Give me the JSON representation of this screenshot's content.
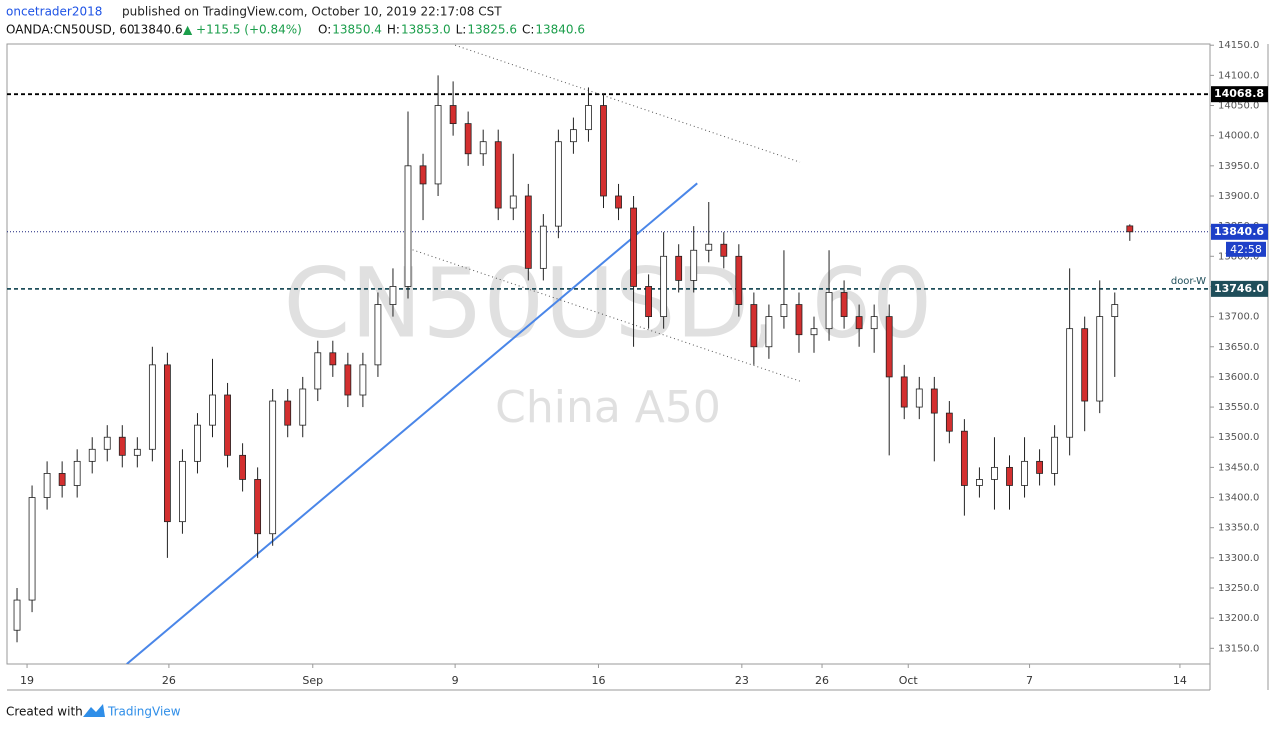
{
  "header": {
    "author": "oncetrader2018",
    "published": "published on TradingView.com, October 10, 2019 22:17:08 CST",
    "symbol": "OANDA:CN50USD, 60",
    "last": "13840.6",
    "change": "▲ +115.5 (+0.84%)",
    "ohlc": [
      [
        "O:",
        "13850.4"
      ],
      [
        "H:",
        "13853.0"
      ],
      [
        "L:",
        "13825.6"
      ],
      [
        "C:",
        "13840.6"
      ]
    ]
  },
  "chart_data": {
    "type": "candlestick",
    "watermark": [
      "CN50USD, 60",
      "China A50"
    ],
    "up_color": "#ffffff",
    "down_color": "#d32f2f",
    "wick_color": "#222222",
    "x": [
      2,
      5,
      8,
      11,
      14,
      17,
      20,
      23,
      26,
      29,
      32,
      35,
      38,
      41,
      44,
      47,
      50,
      53,
      56,
      59,
      62,
      65,
      68,
      71,
      74,
      77,
      80,
      83,
      86,
      89,
      92,
      95,
      98,
      101,
      104,
      107,
      110,
      113,
      116,
      119,
      122,
      125,
      128,
      131,
      134,
      137,
      140,
      143,
      146,
      149,
      152,
      155,
      158,
      161,
      164,
      167,
      170,
      173,
      176,
      179,
      182,
      185,
      188,
      191,
      194,
      197,
      200,
      203,
      206,
      209,
      212,
      215,
      218,
      221,
      224
    ],
    "open": [
      13180,
      13230,
      13400,
      13440,
      13420,
      13460,
      13480,
      13500,
      13470,
      13480,
      13620,
      13360,
      13460,
      13520,
      13570,
      13470,
      13430,
      13340,
      13560,
      13520,
      13580,
      13640,
      13620,
      13570,
      13620,
      13720,
      13750,
      13950,
      13920,
      14050,
      14020,
      13970,
      13990,
      13880,
      13900,
      13780,
      13850,
      13990,
      14010,
      14050,
      13900,
      13880,
      13750,
      13700,
      13800,
      13760,
      13810,
      13820,
      13800,
      13720,
      13650,
      13700,
      13720,
      13670,
      13680,
      13740,
      13700,
      13680,
      13700,
      13600,
      13550,
      13580,
      13540,
      13510,
      13420,
      13430,
      13450,
      13420,
      13460,
      13440,
      13500,
      13680,
      13560,
      13700,
      13850.4
    ],
    "high": [
      13250,
      13420,
      13460,
      13460,
      13480,
      13500,
      13520,
      13520,
      13500,
      13650,
      13640,
      13480,
      13540,
      13630,
      13590,
      13490,
      13450,
      13580,
      13580,
      13600,
      13660,
      13660,
      13640,
      13640,
      13740,
      13780,
      14040,
      13970,
      14100,
      14090,
      14040,
      14010,
      14010,
      13970,
      13920,
      13870,
      14010,
      14030,
      14080,
      14070,
      13920,
      13900,
      13770,
      13840,
      13820,
      13850,
      13890,
      13840,
      13820,
      13740,
      13720,
      13810,
      13740,
      13700,
      13810,
      13760,
      13720,
      13720,
      13720,
      13620,
      13600,
      13600,
      13560,
      13530,
      13450,
      13500,
      13470,
      13500,
      13480,
      13520,
      13780,
      13700,
      13760,
      13740,
      13853
    ],
    "low": [
      13160,
      13210,
      13380,
      13400,
      13400,
      13440,
      13460,
      13450,
      13450,
      13460,
      13300,
      13340,
      13440,
      13500,
      13450,
      13410,
      13300,
      13320,
      13500,
      13500,
      13560,
      13600,
      13550,
      13550,
      13600,
      13700,
      13730,
      13860,
      13900,
      14000,
      13950,
      13950,
      13860,
      13860,
      13760,
      13760,
      13830,
      13970,
      13990,
      13880,
      13860,
      13650,
      13680,
      13680,
      13740,
      13740,
      13790,
      13780,
      13700,
      13620,
      13630,
      13680,
      13640,
      13640,
      13660,
      13680,
      13650,
      13640,
      13470,
      13530,
      13530,
      13460,
      13490,
      13370,
      13400,
      13380,
      13380,
      13400,
      13420,
      13420,
      13470,
      13510,
      13540,
      13600,
      13825.6
    ],
    "close": [
      13230,
      13400,
      13440,
      13420,
      13460,
      13480,
      13500,
      13470,
      13480,
      13620,
      13360,
      13460,
      13520,
      13570,
      13470,
      13430,
      13340,
      13560,
      13520,
      13580,
      13640,
      13620,
      13570,
      13620,
      13720,
      13750,
      13950,
      13920,
      14050,
      14020,
      13970,
      13990,
      13880,
      13900,
      13780,
      13850,
      13990,
      14010,
      14050,
      13900,
      13880,
      13750,
      13700,
      13800,
      13760,
      13810,
      13820,
      13800,
      13720,
      13650,
      13700,
      13720,
      13670,
      13680,
      13740,
      13700,
      13680,
      13700,
      13600,
      13550,
      13580,
      13540,
      13510,
      13420,
      13430,
      13450,
      13420,
      13460,
      13440,
      13500,
      13680,
      13560,
      13700,
      13720,
      13840.6
    ],
    "xlim": [
      0,
      240
    ],
    "ylim": [
      13124,
      14152
    ],
    "xticks": [
      {
        "value": 4,
        "label": "19"
      },
      {
        "value": 32.3,
        "label": "26"
      },
      {
        "value": 61,
        "label": "Sep"
      },
      {
        "value": 89.4,
        "label": "9"
      },
      {
        "value": 118,
        "label": "16"
      },
      {
        "value": 146.6,
        "label": "23"
      },
      {
        "value": 162.6,
        "label": "26"
      },
      {
        "value": 179.8,
        "label": "Oct"
      },
      {
        "value": 204,
        "label": "7"
      },
      {
        "value": 234,
        "label": "14"
      }
    ],
    "yticks": [
      {
        "value": 14150,
        "label": "14150.0"
      },
      {
        "value": 14100,
        "label": "14100.0"
      },
      {
        "value": 14050,
        "label": "14050.0"
      },
      {
        "value": 14000,
        "label": "14000.0"
      },
      {
        "value": 13950,
        "label": "13950.0"
      },
      {
        "value": 13900,
        "label": "13900.0"
      },
      {
        "value": 13850,
        "label": "13850.0"
      },
      {
        "value": 13800,
        "label": "13800.0"
      },
      {
        "value": 13750,
        "label": "13750.0"
      },
      {
        "value": 13700,
        "label": "13700.0"
      },
      {
        "value": 13650,
        "label": "13650.0"
      },
      {
        "value": 13600,
        "label": "13600.0"
      },
      {
        "value": 13550,
        "label": "13550.0"
      },
      {
        "value": 13500,
        "label": "13500.0"
      },
      {
        "value": 13450,
        "label": "13450.0"
      },
      {
        "value": 13400,
        "label": "13400.0"
      },
      {
        "value": 13350,
        "label": "13350.0"
      },
      {
        "value": 13300,
        "label": "13300.0"
      },
      {
        "value": 13250,
        "label": "13250.0"
      },
      {
        "value": 13200,
        "label": "13200.0"
      },
      {
        "value": 13150,
        "label": "13150.0"
      }
    ],
    "levels": [
      {
        "value": 14068.8,
        "color": "#000000",
        "dash": "dashed"
      },
      {
        "value": 13840.6,
        "color": "#1a237e",
        "dash": "dotted",
        "badge": "#1e40c8",
        "countdown": "42:58"
      },
      {
        "value": 13746,
        "label": "13746.0",
        "color": "#1f4e5a",
        "dash": "dashed",
        "note": "door-W"
      }
    ],
    "trendlines": [
      {
        "x": [
          23.9,
          137.7
        ],
        "y": [
          13124,
          13921
        ],
        "color": "#4a86e8",
        "dash": "solid"
      },
      {
        "x": [
          89.4,
          158.2
        ],
        "y": [
          14150,
          13956
        ],
        "color": "#555555",
        "dash": "dotted"
      },
      {
        "x": [
          79.4,
          158.2
        ],
        "y": [
          13815,
          13593
        ],
        "color": "#555555",
        "dash": "dotted"
      }
    ]
  },
  "footer": {
    "text": "Created with",
    "brand": "TradingView"
  }
}
